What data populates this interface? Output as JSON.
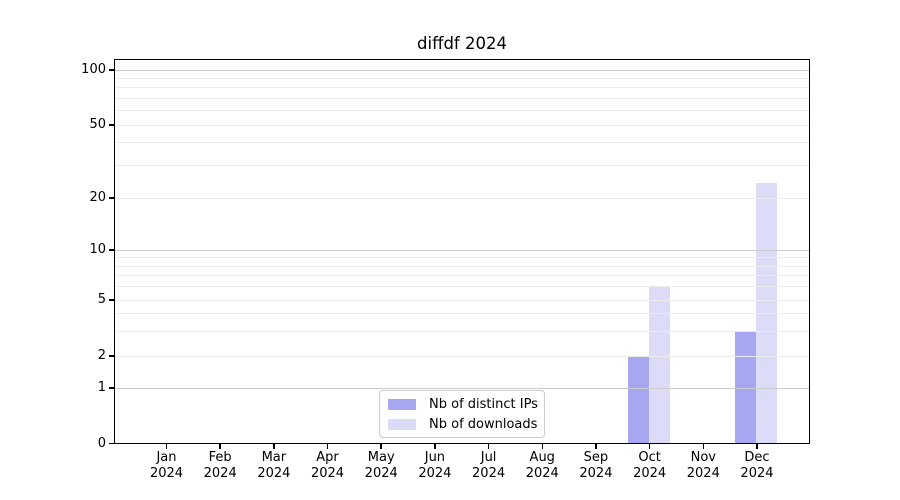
{
  "figure": {
    "title": "diffdf 2024"
  },
  "y_axis": {
    "tick_values": [
      0,
      1,
      2,
      5,
      10,
      20,
      50,
      100
    ],
    "tick_labels": [
      "0",
      "1",
      "2",
      "5",
      "10",
      "20",
      "50",
      "100"
    ],
    "minor_gridlines": [
      3,
      4,
      6,
      7,
      8,
      9,
      30,
      40,
      60,
      70,
      80,
      90
    ],
    "major_gridlines": [
      1,
      10,
      100
    ]
  },
  "x_axis": {
    "months": [
      "Jan",
      "Feb",
      "Mar",
      "Apr",
      "May",
      "Jun",
      "Jul",
      "Aug",
      "Sep",
      "Oct",
      "Nov",
      "Dec"
    ],
    "year": "2024"
  },
  "legend": {
    "items": [
      {
        "label": "Nb of distinct IPs",
        "color": "#a6a6f1"
      },
      {
        "label": "Nb of downloads",
        "color": "#dcdcf8"
      }
    ]
  },
  "chart_data": {
    "type": "bar",
    "title": "diffdf 2024",
    "categories": [
      "Jan 2024",
      "Feb 2024",
      "Mar 2024",
      "Apr 2024",
      "May 2024",
      "Jun 2024",
      "Jul 2024",
      "Aug 2024",
      "Sep 2024",
      "Oct 2024",
      "Nov 2024",
      "Dec 2024"
    ],
    "series": [
      {
        "name": "Nb of distinct IPs",
        "color": "#a6a6f1",
        "values": [
          0,
          0,
          0,
          0,
          0,
          0,
          0,
          0,
          0,
          2,
          0,
          3
        ]
      },
      {
        "name": "Nb of downloads",
        "color": "#dcdcf8",
        "values": [
          0,
          0,
          0,
          0,
          0,
          0,
          0,
          0,
          0,
          6,
          0,
          24
        ]
      }
    ],
    "yscale": "symlog",
    "ylim": [
      0,
      100
    ],
    "y_ticks": [
      0,
      1,
      2,
      5,
      10,
      20,
      50,
      100
    ],
    "xlabel": "",
    "ylabel": "",
    "grid": "on",
    "legend_position": "lower center inside"
  }
}
